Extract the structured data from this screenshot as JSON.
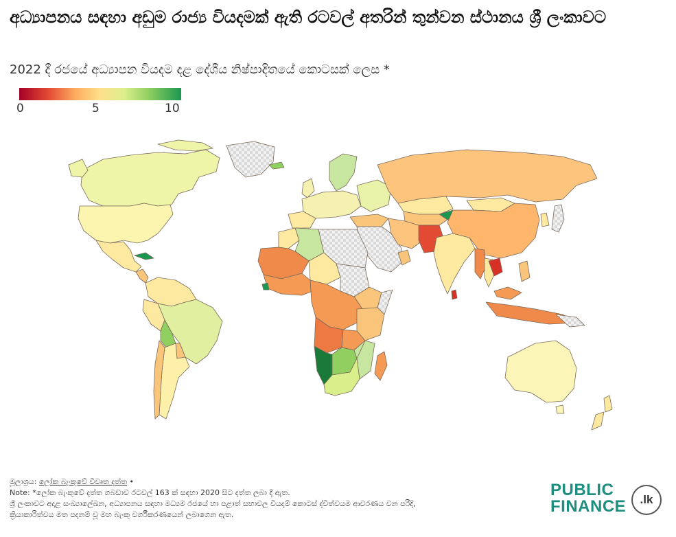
{
  "header": {
    "title": "අධ්‍යාපනය සඳහා අඩුම රාජ්‍ය වියදමක් ඇති රටවල් අතරින් තුන්වන ස්ථානය ශ්‍රී ලංකාවට",
    "subtitle": "2022 දී රජයේ අධ්‍යාපන වියදම දළ දේශීය නිෂ්පාදිතයේ කොටසක් ලෙස *"
  },
  "legend": {
    "ticks": [
      "0",
      "5",
      "10"
    ],
    "colors": [
      "#a50026",
      "#e34a33",
      "#fdae61",
      "#fee08b",
      "#d9ef8b",
      "#91cf60",
      "#1a9850"
    ],
    "no_data_pattern": "light-grey-checkerboard"
  },
  "map": {
    "type": "choropleth-world",
    "metric_range": [
      0,
      10
    ],
    "regions": [
      {
        "name": "Canada",
        "color": "#eef5a8"
      },
      {
        "name": "United States",
        "color": "#fcf5b0"
      },
      {
        "name": "Greenland",
        "color": "no-data"
      },
      {
        "name": "Mexico",
        "color": "#fde9a0"
      },
      {
        "name": "Cuba",
        "color": "#1a9850"
      },
      {
        "name": "South America (north)",
        "color": "#fde9a0"
      },
      {
        "name": "Brazil",
        "color": "#e0f0a0"
      },
      {
        "name": "Bolivia",
        "color": "#91cf60"
      },
      {
        "name": "Argentina",
        "color": "#fdf0a8"
      },
      {
        "name": "Chile",
        "color": "#f9c57a"
      },
      {
        "name": "Russia",
        "color": "#fdc47d"
      },
      {
        "name": "Europe",
        "color": "#f5f1b0"
      },
      {
        "name": "Scandinavia",
        "color": "#c7e6a0"
      },
      {
        "name": "Algeria",
        "color": "#c7e6a0"
      },
      {
        "name": "West Africa",
        "color": "#f08a4b"
      },
      {
        "name": "Central Africa",
        "color": "#f49a55"
      },
      {
        "name": "East Africa",
        "color": "#f9c57a"
      },
      {
        "name": "Angola",
        "color": "#ee7a43"
      },
      {
        "name": "Namibia",
        "color": "#1a7a3a"
      },
      {
        "name": "Botswana",
        "color": "#91cf60"
      },
      {
        "name": "South Africa",
        "color": "#d9ef8b"
      },
      {
        "name": "Madagascar",
        "color": "#f49a55"
      },
      {
        "name": "Saudi Arabia / Middle East",
        "color": "no-data"
      },
      {
        "name": "Iran",
        "color": "#fdc47d"
      },
      {
        "name": "Pakistan",
        "color": "#e34a33"
      },
      {
        "name": "India",
        "color": "#fde9a0"
      },
      {
        "name": "Sri Lanka",
        "color": "#d73027"
      },
      {
        "name": "China",
        "color": "#fdb66b"
      },
      {
        "name": "Mongolia",
        "color": "#fde9a0"
      },
      {
        "name": "Kazakhstan",
        "color": "#fde9a0"
      },
      {
        "name": "Kyrgyzstan",
        "color": "#1a9850"
      },
      {
        "name": "Myanmar",
        "color": "#f08a4b"
      },
      {
        "name": "Cambodia",
        "color": "#d73027"
      },
      {
        "name": "Indonesia",
        "color": "#f08a4b"
      },
      {
        "name": "Australia",
        "color": "#fcf5b8"
      },
      {
        "name": "New Zealand",
        "color": "#fde9a0"
      }
    ]
  },
  "footer": {
    "source_label": "මූලාශ්‍රය:",
    "source_link": "ලෝක බැංකුවේ විවෘත දත්ත",
    "source_suffix": "•",
    "note_line1": "Note: *ලෝක බැංකුවේ දත්ත ගබඩාව රටවල් 163 ක් සඳහා 2020 සිට දත්ත ලබා දී ඇත.",
    "note_line2": "ශ්‍රී ලංකාවට අදාළ සංඛ්‍යාලේඛන, අධ්‍යාපනය සඳහා මධ්‍යම රජයේ හා පළාත් සභාවල වියදම් කොටස් ද්විත්වයම ආවරණය වන පරිදි,",
    "note_line3": "ක්‍රියාකාරිත්වය මත පදනම් වූ මහ බැංකු වර්ගීකරණයෙන් ලබාගෙන ඇත."
  },
  "logo": {
    "line1": "PUBLIC",
    "line2": "FINANCE",
    "badge": ".lk"
  }
}
